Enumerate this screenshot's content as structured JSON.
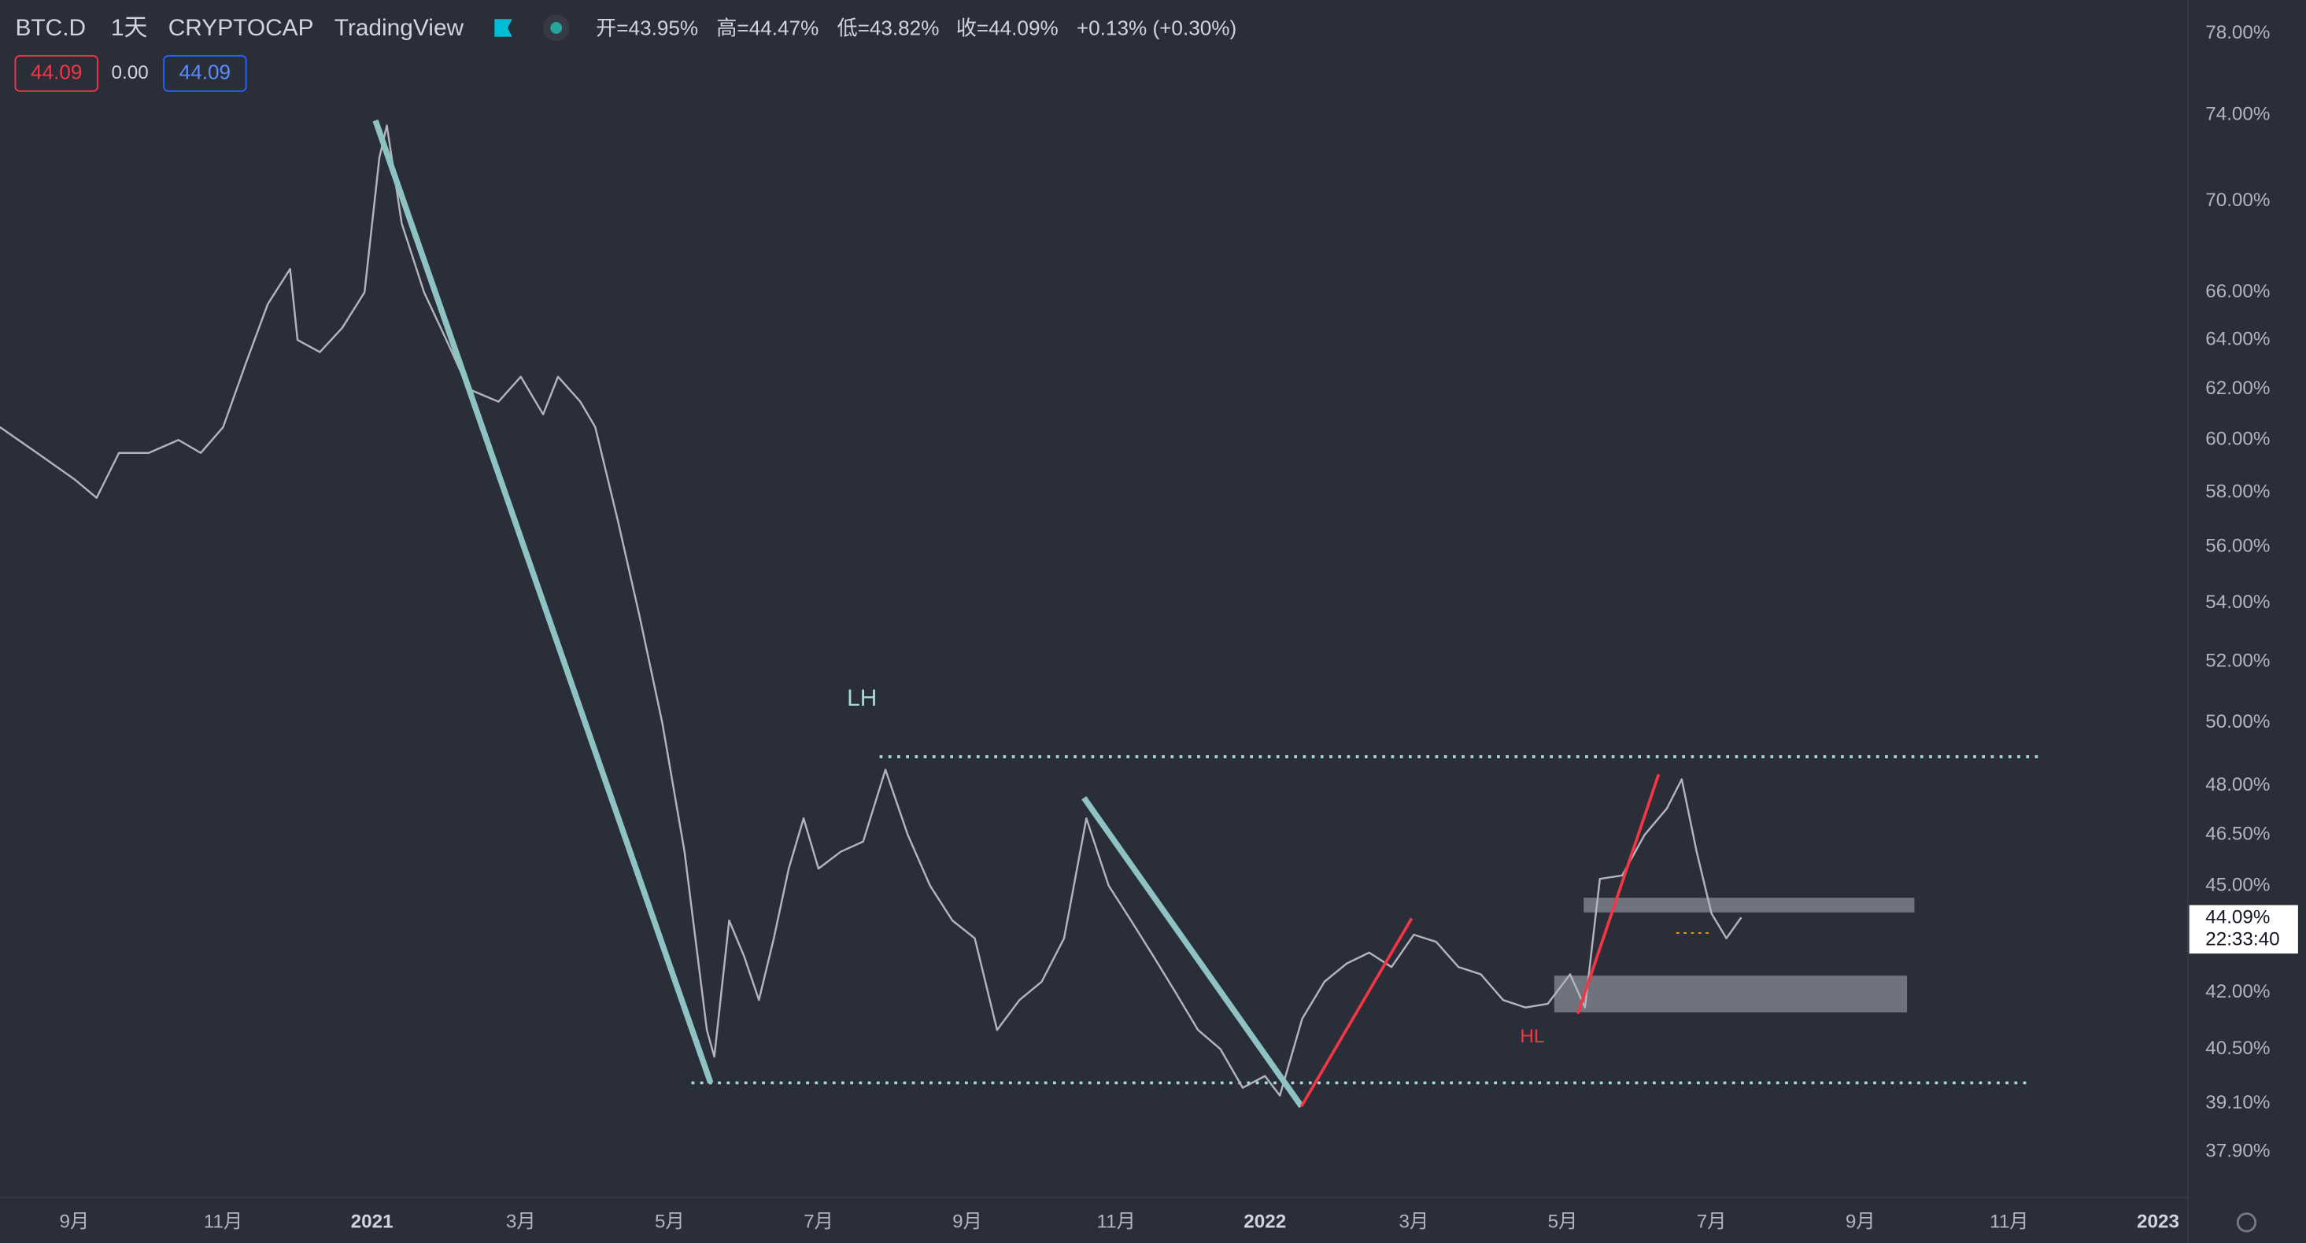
{
  "header": {
    "symbol": "BTC.D",
    "interval": "1天",
    "exchange": "CRYPTOCAP",
    "source": "TradingView",
    "ohlc": [
      "开=43.95%",
      "高=44.47%",
      "低=43.82%",
      "收=44.09%",
      "+0.13% (+0.30%)"
    ],
    "badges": [
      "44.09",
      "0.00",
      "44.09"
    ]
  },
  "chart_data": {
    "type": "line",
    "log_scale": true,
    "grid": false,
    "xlim": [
      -0.99,
      28.4
    ],
    "ylim": [
      36.8,
      79.7
    ],
    "xticks": [
      {
        "value": 0,
        "label": "9月"
      },
      {
        "value": 2,
        "label": "11月"
      },
      {
        "value": 4,
        "label": "2021"
      },
      {
        "value": 6,
        "label": "3月"
      },
      {
        "value": 8,
        "label": "5月"
      },
      {
        "value": 10,
        "label": "7月"
      },
      {
        "value": 12,
        "label": "9月"
      },
      {
        "value": 14,
        "label": "11月"
      },
      {
        "value": 16,
        "label": "2022"
      },
      {
        "value": 18,
        "label": "3月"
      },
      {
        "value": 20,
        "label": "5月"
      },
      {
        "value": 22,
        "label": "7月"
      },
      {
        "value": 24,
        "label": "9月"
      },
      {
        "value": 26,
        "label": "11月"
      },
      {
        "value": 28,
        "label": "2023"
      }
    ],
    "yticks": [
      {
        "value": 78,
        "label": "78.00%"
      },
      {
        "value": 74,
        "label": "74.00%"
      },
      {
        "value": 70,
        "label": "70.00%"
      },
      {
        "value": 66,
        "label": "66.00%"
      },
      {
        "value": 64,
        "label": "64.00%"
      },
      {
        "value": 62,
        "label": "62.00%"
      },
      {
        "value": 60,
        "label": "60.00%"
      },
      {
        "value": 58,
        "label": "58.00%"
      },
      {
        "value": 56,
        "label": "56.00%"
      },
      {
        "value": 54,
        "label": "54.00%"
      },
      {
        "value": 52,
        "label": "52.00%"
      },
      {
        "value": 50,
        "label": "50.00%"
      },
      {
        "value": 48,
        "label": "48.00%"
      },
      {
        "value": 46.5,
        "label": "46.50%"
      },
      {
        "value": 45,
        "label": "45.00%"
      },
      {
        "value": 42,
        "label": "42.00%"
      },
      {
        "value": 40.5,
        "label": "40.50%"
      },
      {
        "value": 39.1,
        "label": "39.10%"
      },
      {
        "value": 37.9,
        "label": "37.90%"
      }
    ],
    "series": [
      {
        "color": "#b2b5be",
        "x": [
          -1.0,
          -0.5,
          0,
          0.3,
          0.6,
          1.0,
          1.4,
          1.7,
          2.0,
          2.3,
          2.6,
          2.9,
          3.0,
          3.3,
          3.6,
          3.9,
          4.1,
          4.2,
          4.4,
          4.7,
          5.0,
          5.3,
          5.7,
          6.0,
          6.3,
          6.5,
          6.8,
          7.0,
          7.3,
          7.6,
          7.9,
          8.2,
          8.5,
          8.6,
          8.8,
          9.0,
          9.2,
          9.4,
          9.6,
          9.8,
          10.0,
          10.3,
          10.6,
          10.9,
          11.2,
          11.5,
          11.8,
          12.1,
          12.4,
          12.7,
          13.0,
          13.3,
          13.6,
          13.9,
          14.2,
          14.5,
          14.8,
          15.1,
          15.4,
          15.7,
          16.0,
          16.2,
          16.5,
          16.8,
          17.1,
          17.4,
          17.7,
          18.0,
          18.3,
          18.6,
          18.9,
          19.2,
          19.5,
          19.8,
          20.1,
          20.3,
          20.5,
          20.8,
          21.1,
          21.4,
          21.6,
          21.8,
          22.0,
          22.2,
          22.4
        ],
        "values": [
          60.5,
          59.5,
          58.5,
          57.8,
          59.5,
          59.5,
          60,
          59.5,
          60.5,
          63,
          65.5,
          67,
          64,
          63.5,
          64.5,
          66,
          72,
          73.5,
          69,
          66,
          64,
          62,
          61.5,
          62.5,
          61,
          62.5,
          61.5,
          60.5,
          57,
          53.5,
          50,
          46,
          41,
          40.3,
          44,
          43,
          41.8,
          43.5,
          45.5,
          47,
          45.5,
          46,
          46.3,
          48.5,
          46.5,
          45,
          44,
          43.5,
          41,
          41.8,
          42.3,
          43.5,
          47,
          45,
          44,
          43,
          42,
          41,
          40.5,
          39.5,
          39.8,
          39.3,
          41.3,
          42.3,
          42.8,
          43.1,
          42.7,
          43.6,
          43.4,
          42.7,
          42.5,
          41.8,
          41.6,
          41.7,
          42.5,
          41.6,
          45.2,
          45.3,
          46.5,
          47.3,
          48.2,
          46,
          44.2,
          43.5,
          44.09
        ]
      }
    ],
    "annotations": [
      "LH",
      "HL"
    ],
    "price_label": {
      "value": "44.09%",
      "time": "22:33:40"
    }
  }
}
